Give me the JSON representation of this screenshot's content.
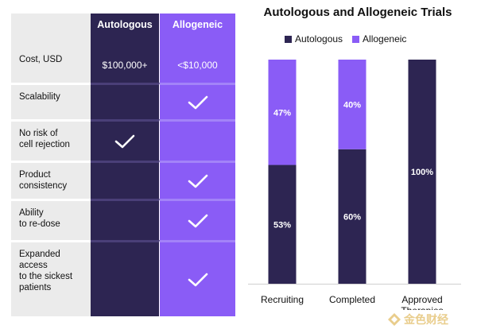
{
  "table": {
    "columns": [
      "Autologous",
      "Allogeneic"
    ],
    "rows": [
      {
        "label": "Cost, USD",
        "autologous": "$100,000+",
        "allogeneic": "<$10,000"
      },
      {
        "label": "Scalability",
        "autologous": "",
        "allogeneic": "check"
      },
      {
        "label": "No risk of\ncell rejection",
        "autologous": "check",
        "allogeneic": ""
      },
      {
        "label": "Product\nconsistency",
        "autologous": "",
        "allogeneic": "check"
      },
      {
        "label": "Ability\nto re-dose",
        "autologous": "",
        "allogeneic": "check"
      },
      {
        "label": "Expanded\naccess\nto the sickest\npatients",
        "autologous": "",
        "allogeneic": "check"
      }
    ]
  },
  "chart_data": {
    "type": "bar",
    "stacked": true,
    "title": "Autologous and Allogeneic Trials",
    "categories": [
      "Recruiting",
      "Completed",
      "Approved Therapies"
    ],
    "series": [
      {
        "name": "Autologous",
        "values": [
          53,
          60,
          100
        ],
        "labels": [
          "53%",
          "60%",
          "100%"
        ]
      },
      {
        "name": "Allogeneic",
        "values": [
          47,
          40,
          0
        ],
        "labels": [
          "47%",
          "40%",
          ""
        ]
      }
    ],
    "ylim": [
      0,
      100
    ],
    "legend": "top",
    "grid": false
  },
  "colors": {
    "autologous": "#2d2552",
    "allogeneic": "#8a5cf6"
  },
  "watermark": {
    "text": "金色财经",
    "icon": "gold-logo-icon"
  }
}
